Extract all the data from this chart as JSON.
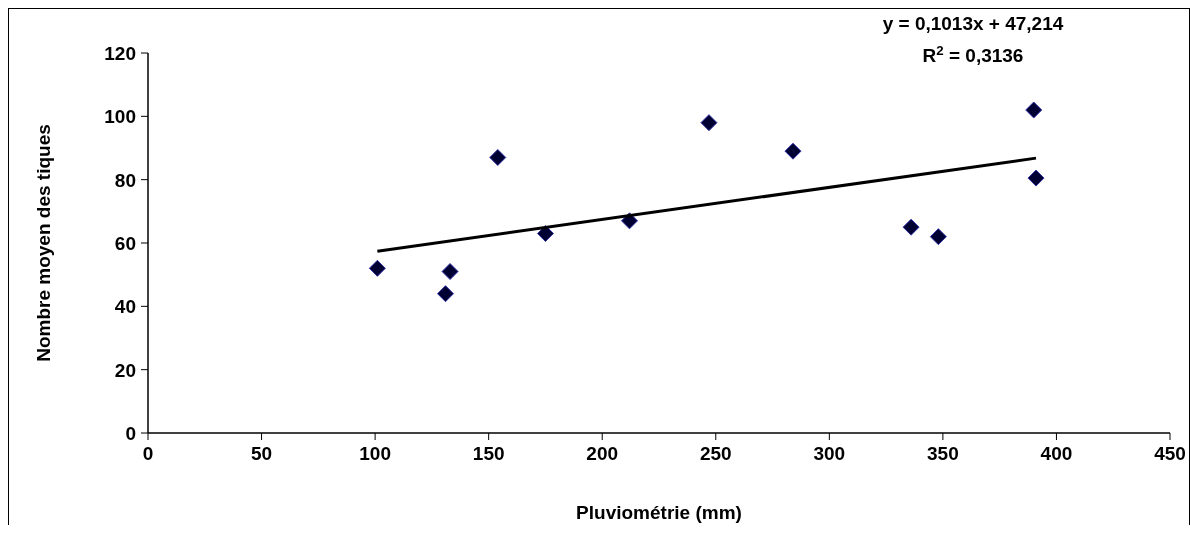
{
  "chart_data": {
    "type": "scatter",
    "xlabel": "Pluviométrie (mm)",
    "ylabel": "Nombre moyen des tiques",
    "xlim": [
      0,
      450
    ],
    "xticks": [
      0,
      50,
      100,
      150,
      200,
      250,
      300,
      350,
      400,
      450
    ],
    "ylim": [
      0,
      120
    ],
    "yticks": [
      0,
      20,
      40,
      60,
      80,
      100,
      120
    ],
    "grid": false,
    "marker": "diamond",
    "annotations": [
      "y = 0,1013x + 47,214",
      "R$^{2}$ = 0,3136"
    ],
    "series": [
      {
        "color": "#000033",
        "x": [
          101,
          131,
          133,
          154,
          175,
          212,
          247,
          284,
          336,
          348,
          390,
          391
        ],
        "values": [
          52,
          44,
          51,
          87,
          63,
          67,
          98,
          89,
          65,
          62,
          102,
          80.5
        ]
      },
      {
        "type": "line",
        "color": "#000000",
        "marker": "none",
        "line_style": "solid",
        "x": [
          101,
          391
        ],
        "values": [
          57.4,
          86.8
        ]
      }
    ]
  }
}
